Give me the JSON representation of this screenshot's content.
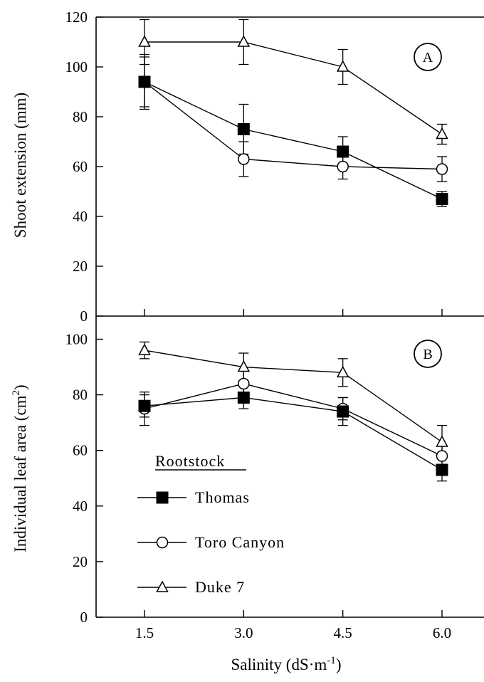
{
  "chart_data": {
    "type": "line",
    "x": [
      1.5,
      3.0,
      4.5,
      6.0
    ],
    "x_tick_labels": [
      "1.5",
      "3.0",
      "4.5",
      "6.0"
    ],
    "xlabel": "Salinity (dS·m",
    "xlabel_sup": "-1",
    "xlabel_end": ")",
    "legend_title": "Rootstock",
    "panels": [
      {
        "label": "A",
        "ylabel": "Shoot extension (mm)",
        "ylim": [
          0,
          120
        ],
        "y_ticks": [
          0,
          20,
          40,
          60,
          80,
          100,
          120
        ],
        "series": [
          {
            "name": "Thomas",
            "values": [
              94,
              75,
              66,
              47
            ],
            "errors": [
              10,
              10,
              6,
              3
            ]
          },
          {
            "name": "Toro Canyon",
            "values": [
              94,
              63,
              60,
              59
            ],
            "errors": [
              11,
              7,
              5,
              5
            ]
          },
          {
            "name": "Duke 7",
            "values": [
              110,
              110,
              100,
              73
            ],
            "errors": [
              9,
              9,
              7,
              4
            ]
          }
        ]
      },
      {
        "label": "B",
        "ylabel": "Individual leaf area (cm",
        "ylabel_sup": "2",
        "ylabel_end": ")",
        "ylim": [
          0,
          105
        ],
        "y_ticks": [
          0,
          20,
          40,
          60,
          80,
          100
        ],
        "series": [
          {
            "name": "Thomas",
            "values": [
              76,
              79,
              74,
              53
            ],
            "errors": [
              4,
              4,
              5,
              4
            ]
          },
          {
            "name": "Toro Canyon",
            "values": [
              75,
              84,
              75,
              58
            ],
            "errors": [
              6,
              5,
              4,
              4
            ]
          },
          {
            "name": "Duke 7",
            "values": [
              96,
              90,
              88,
              63
            ],
            "errors": [
              3,
              5,
              5,
              6
            ]
          }
        ]
      }
    ]
  }
}
